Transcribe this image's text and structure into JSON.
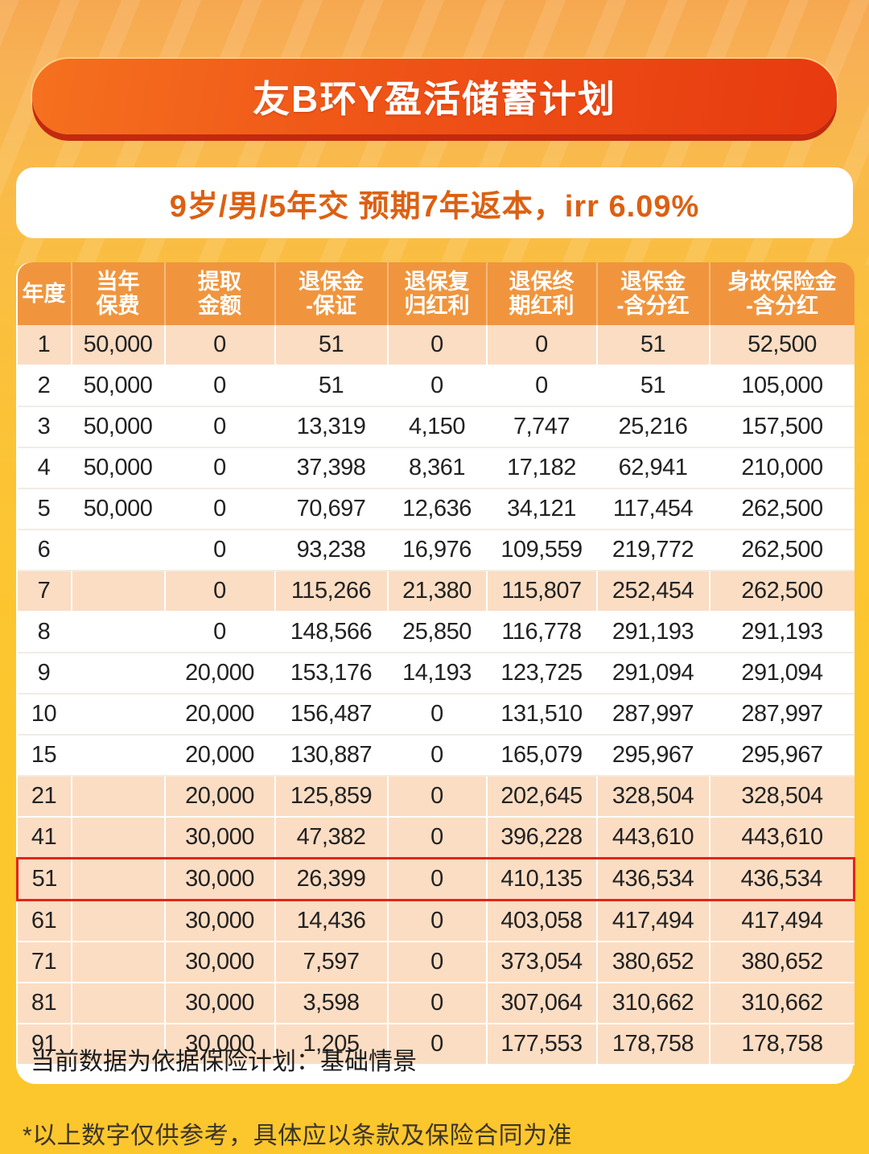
{
  "banner": {
    "title": "友B环Y盈活储蓄计划"
  },
  "subtitle": {
    "text": "9岁/男/5年交  预期7年返本，irr 6.09%"
  },
  "table": {
    "headers": [
      {
        "l1": "年度",
        "l2": ""
      },
      {
        "l1": "当年",
        "l2": "保费"
      },
      {
        "l1": "提取",
        "l2": "金额"
      },
      {
        "l1": "退保金",
        "l2": "-保证"
      },
      {
        "l1": "退保复",
        "l2": "归红利"
      },
      {
        "l1": "退保终",
        "l2": "期红利"
      },
      {
        "l1": "退保金",
        "l2": "-含分红"
      },
      {
        "l1": "身故保险金",
        "l2": "-含分红"
      }
    ],
    "rows": [
      {
        "cells": [
          "1",
          "50,000",
          "0",
          "51",
          "0",
          "0",
          "51",
          "52,500"
        ],
        "shaded": true,
        "highlight": false
      },
      {
        "cells": [
          "2",
          "50,000",
          "0",
          "51",
          "0",
          "0",
          "51",
          "105,000"
        ],
        "shaded": false,
        "highlight": false
      },
      {
        "cells": [
          "3",
          "50,000",
          "0",
          "13,319",
          "4,150",
          "7,747",
          "25,216",
          "157,500"
        ],
        "shaded": false,
        "highlight": false
      },
      {
        "cells": [
          "4",
          "50,000",
          "0",
          "37,398",
          "8,361",
          "17,182",
          "62,941",
          "210,000"
        ],
        "shaded": false,
        "highlight": false
      },
      {
        "cells": [
          "5",
          "50,000",
          "0",
          "70,697",
          "12,636",
          "34,121",
          "117,454",
          "262,500"
        ],
        "shaded": false,
        "highlight": false
      },
      {
        "cells": [
          "6",
          "",
          "0",
          "93,238",
          "16,976",
          "109,559",
          "219,772",
          "262,500"
        ],
        "shaded": false,
        "highlight": false
      },
      {
        "cells": [
          "7",
          "",
          "0",
          "115,266",
          "21,380",
          "115,807",
          "252,454",
          "262,500"
        ],
        "shaded": true,
        "highlight": false
      },
      {
        "cells": [
          "8",
          "",
          "0",
          "148,566",
          "25,850",
          "116,778",
          "291,193",
          "291,193"
        ],
        "shaded": false,
        "highlight": false
      },
      {
        "cells": [
          "9",
          "",
          "20,000",
          "153,176",
          "14,193",
          "123,725",
          "291,094",
          "291,094"
        ],
        "shaded": false,
        "highlight": false
      },
      {
        "cells": [
          "10",
          "",
          "20,000",
          "156,487",
          "0",
          "131,510",
          "287,997",
          "287,997"
        ],
        "shaded": false,
        "highlight": false
      },
      {
        "cells": [
          "15",
          "",
          "20,000",
          "130,887",
          "0",
          "165,079",
          "295,967",
          "295,967"
        ],
        "shaded": false,
        "highlight": false
      },
      {
        "cells": [
          "21",
          "",
          "20,000",
          "125,859",
          "0",
          "202,645",
          "328,504",
          "328,504"
        ],
        "shaded": true,
        "highlight": false
      },
      {
        "cells": [
          "41",
          "",
          "30,000",
          "47,382",
          "0",
          "396,228",
          "443,610",
          "443,610"
        ],
        "shaded": true,
        "highlight": false
      },
      {
        "cells": [
          "51",
          "",
          "30,000",
          "26,399",
          "0",
          "410,135",
          "436,534",
          "436,534"
        ],
        "shaded": true,
        "highlight": true
      },
      {
        "cells": [
          "61",
          "",
          "30,000",
          "14,436",
          "0",
          "403,058",
          "417,494",
          "417,494"
        ],
        "shaded": true,
        "highlight": false
      },
      {
        "cells": [
          "71",
          "",
          "30,000",
          "7,597",
          "0",
          "373,054",
          "380,652",
          "380,652"
        ],
        "shaded": true,
        "highlight": false
      },
      {
        "cells": [
          "81",
          "",
          "30,000",
          "3,598",
          "0",
          "307,064",
          "310,662",
          "310,662"
        ],
        "shaded": true,
        "highlight": false
      },
      {
        "cells": [
          "91",
          "",
          "30,000",
          "1,205",
          "0",
          "177,553",
          "178,758",
          "178,758"
        ],
        "shaded": true,
        "highlight": false
      }
    ]
  },
  "scenario_note": "当前数据为依据保险计划：基础情景",
  "disclaimer": "*以上数字仅供参考，具体应以条款及保险合同为准",
  "colors": {
    "banner_gradient_from": "#f5711f",
    "banner_gradient_to": "#e73a0f",
    "banner_shadow": "#c3290e",
    "subtitle_text": "#dc6012",
    "header_bg": "#f0953d",
    "shaded_row_bg": "#fbddc3",
    "highlight_border": "#e2251b",
    "page_yellow": "#fcc62d"
  }
}
